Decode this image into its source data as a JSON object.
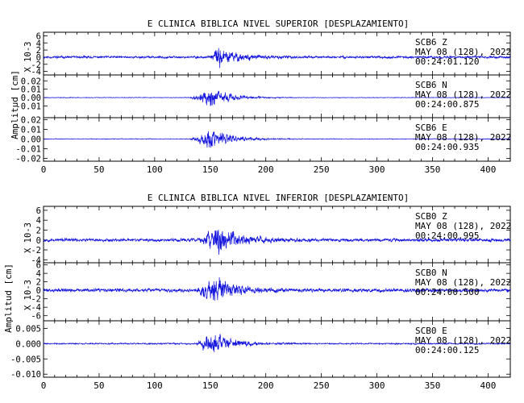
{
  "figure_ylabel": "Amplitud [cm]",
  "trace_color": "#1010dd",
  "chart_data": [
    {
      "type": "line",
      "title": "E CLINICA BIBLICA NIVEL SUPERIOR [DESPLAZAMIENTO]",
      "xlim": [
        0,
        420
      ],
      "xticks": [
        "0",
        "50",
        "100",
        "150",
        "200",
        "250",
        "300",
        "350",
        "400"
      ],
      "grid": false,
      "panels": [
        {
          "scale_label": "X 10-3",
          "ylim": [
            -5,
            7
          ],
          "yticks": [
            {
              "v": 6,
              "t": "6"
            },
            {
              "v": 4,
              "t": "4"
            },
            {
              "v": 2,
              "t": "2"
            },
            {
              "v": 0,
              "t": "0"
            },
            {
              "v": -2,
              "t": "-2"
            },
            {
              "v": -4,
              "t": "-4"
            }
          ],
          "station": "SCB6",
          "component": "Z",
          "date": "MAY 08 (128), 2022",
          "time": "00:24:01.120",
          "series": {
            "baseline": 0,
            "noise": 0.55,
            "peak": 4.8,
            "event_start": 148,
            "event_end": 240,
            "peak_at": 157,
            "seed": 11
          }
        },
        {
          "ylim": [
            -0.024,
            0.027
          ],
          "yticks": [
            {
              "v": 0.02,
              "t": "0.02"
            },
            {
              "v": 0.01,
              "t": "0.01"
            },
            {
              "v": 0,
              "t": "0.00"
            },
            {
              "v": -0.01,
              "t": "-0.01"
            }
          ],
          "station": "SCB6",
          "component": "N",
          "date": "MAY 08 (128), 2022",
          "time": "00:24:00.875",
          "series": {
            "baseline": 0,
            "noise": 0.0006,
            "peak": 0.019,
            "event_start": 128,
            "event_end": 230,
            "peak_at": 150,
            "seed": 23
          }
        },
        {
          "ylim": [
            -0.023,
            0.022
          ],
          "yticks": [
            {
              "v": 0.02,
              "t": "0.02"
            },
            {
              "v": 0.01,
              "t": "0.01"
            },
            {
              "v": 0,
              "t": "0.00"
            },
            {
              "v": -0.01,
              "t": "-0.01"
            },
            {
              "v": -0.02,
              "t": "-0.02"
            }
          ],
          "station": "SCB6",
          "component": "E",
          "date": "MAY 08 (128), 2022",
          "time": "00:24:00.935",
          "series": {
            "baseline": 0,
            "noise": 0.0006,
            "peak": 0.02,
            "event_start": 130,
            "event_end": 230,
            "peak_at": 150,
            "seed": 37
          }
        }
      ]
    },
    {
      "type": "line",
      "title": "E CLINICA BIBLICA NIVEL INFERIOR [DESPLAZAMIENTO]",
      "xlim": [
        0,
        420
      ],
      "xticks": [
        "0",
        "50",
        "100",
        "150",
        "200",
        "250",
        "300",
        "350",
        "400"
      ],
      "grid": false,
      "panels": [
        {
          "scale_label": "X 10-3",
          "ylim": [
            -4.6,
            6.8
          ],
          "yticks": [
            {
              "v": 6,
              "t": "6"
            },
            {
              "v": 4,
              "t": "4"
            },
            {
              "v": 2,
              "t": "2"
            },
            {
              "v": 0,
              "t": "0"
            },
            {
              "v": -2,
              "t": "-2"
            },
            {
              "v": -4,
              "t": "-4"
            }
          ],
          "station": "SCB0",
          "component": "Z",
          "date": "MAY 08 (128), 2022",
          "time": "00:24:00.995",
          "series": {
            "baseline": 0,
            "noise": 0.55,
            "peak": 5.4,
            "event_start": 135,
            "event_end": 260,
            "peak_at": 158,
            "seed": 53
          }
        },
        {
          "scale_label": "X 10-3",
          "ylim": [
            -7.2,
            6.5
          ],
          "yticks": [
            {
              "v": 6,
              "t": "6"
            },
            {
              "v": 4,
              "t": "4"
            },
            {
              "v": 2,
              "t": "2"
            },
            {
              "v": 0,
              "t": "0"
            },
            {
              "v": -2,
              "t": "-2"
            },
            {
              "v": -4,
              "t": "-4"
            },
            {
              "v": -6,
              "t": "-6"
            }
          ],
          "station": "SCB0",
          "component": "N",
          "date": "MAY 08 (128), 2022",
          "time": "00:24:00.500",
          "series": {
            "baseline": 0,
            "noise": 0.7,
            "peak": 6,
            "event_start": 135,
            "event_end": 260,
            "peak_at": 152,
            "seed": 71
          }
        },
        {
          "ylim": [
            -0.011,
            0.0075
          ],
          "yticks": [
            {
              "v": 0.005,
              "t": "0.005"
            },
            {
              "v": 0,
              "t": "0.000"
            },
            {
              "v": -0.005,
              "t": "-0.005"
            },
            {
              "v": -0.01,
              "t": "-0.010"
            }
          ],
          "station": "SCB0",
          "component": "E",
          "date": "MAY 08 (128), 2022",
          "time": "00:24:00.125",
          "series": {
            "baseline": 0,
            "noise": 0.0004,
            "peak": 0.0068,
            "event_start": 135,
            "event_end": 260,
            "peak_at": 150,
            "seed": 89
          }
        }
      ]
    }
  ]
}
